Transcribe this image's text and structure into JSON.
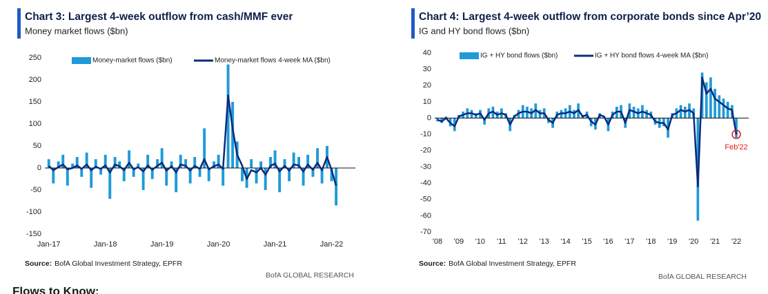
{
  "chart_data": [
    {
      "type": "combo",
      "title": "Chart 3: Largest 4-week outflow from cash/MMF ever",
      "subtitle": "Money market flows ($bn)",
      "source_label": "Source:",
      "source": "BofA Global Investment Strategy, EPFR",
      "brand": "BofA GLOBAL RESEARCH",
      "xlim": [
        2016.93,
        2022.42
      ],
      "xticks": [
        {
          "value": 2017,
          "label": "Jan-17"
        },
        {
          "value": 2018,
          "label": "Jan-18"
        },
        {
          "value": 2019,
          "label": "Jan-19"
        },
        {
          "value": 2020,
          "label": "Jan-20"
        },
        {
          "value": 2021,
          "label": "Jan-21"
        },
        {
          "value": 2022,
          "label": "Jan-22"
        }
      ],
      "ylim": [
        -150,
        250
      ],
      "yticks": [
        -150,
        -100,
        -50,
        0,
        50,
        100,
        150,
        200,
        250
      ],
      "x": [
        2017,
        2017.08,
        2017.17,
        2017.25,
        2017.33,
        2017.42,
        2017.5,
        2017.58,
        2017.67,
        2017.75,
        2017.83,
        2017.92,
        2018,
        2018.08,
        2018.17,
        2018.25,
        2018.33,
        2018.42,
        2018.5,
        2018.58,
        2018.67,
        2018.75,
        2018.83,
        2018.92,
        2019,
        2019.08,
        2019.17,
        2019.25,
        2019.33,
        2019.42,
        2019.5,
        2019.58,
        2019.67,
        2019.75,
        2019.83,
        2019.92,
        2020,
        2020.08,
        2020.17,
        2020.25,
        2020.33,
        2020.42,
        2020.5,
        2020.58,
        2020.67,
        2020.75,
        2020.83,
        2020.92,
        2021,
        2021.08,
        2021.17,
        2021.25,
        2021.33,
        2021.42,
        2021.5,
        2021.58,
        2021.67,
        2021.75,
        2021.83,
        2021.92,
        2022,
        2022.08
      ],
      "series": [
        {
          "name": "Money-market flows ($bn)",
          "kind": "bar",
          "color": "#1f9bd7",
          "values": [
            20,
            -35,
            15,
            30,
            -40,
            10,
            25,
            -20,
            35,
            -45,
            20,
            -15,
            30,
            -70,
            25,
            15,
            -30,
            40,
            -20,
            10,
            -50,
            30,
            -25,
            20,
            45,
            -40,
            15,
            -55,
            30,
            20,
            -35,
            25,
            -20,
            90,
            -30,
            15,
            30,
            -40,
            235,
            150,
            60,
            -30,
            -45,
            20,
            -35,
            15,
            -50,
            25,
            40,
            -55,
            20,
            -30,
            35,
            25,
            -40,
            30,
            -20,
            45,
            -35,
            50,
            -30,
            -85
          ]
        },
        {
          "name": "Money-market flows 4-week MA ($bn)",
          "kind": "line",
          "color": "#0a2a7a",
          "values": [
            5,
            -5,
            2,
            8,
            -3,
            0,
            6,
            -2,
            8,
            -5,
            3,
            -2,
            6,
            -10,
            8,
            4,
            -5,
            12,
            -3,
            2,
            -8,
            6,
            -4,
            5,
            12,
            -6,
            4,
            -10,
            8,
            5,
            -6,
            5,
            -2,
            20,
            -3,
            4,
            8,
            -2,
            165,
            90,
            30,
            5,
            -25,
            -5,
            -10,
            0,
            -15,
            5,
            10,
            -8,
            5,
            -6,
            8,
            6,
            -8,
            8,
            -4,
            12,
            -5,
            25,
            -5,
            -40
          ]
        }
      ]
    },
    {
      "type": "combo",
      "title": "Chart 4: Largest 4-week outflow from corporate bonds since Apr’20",
      "subtitle": "IG and HY bond flows ($bn)",
      "source_label": "Source:",
      "source": "BofA Global Investment Strategy, EPFR",
      "brand": "BofA GLOBAL RESEARCH",
      "annotation": "Feb'22",
      "xlim": [
        2007.87,
        2022.58
      ],
      "xticks": [
        {
          "value": 2008,
          "label": "'08"
        },
        {
          "value": 2009,
          "label": "'09"
        },
        {
          "value": 2010,
          "label": "'10"
        },
        {
          "value": 2011,
          "label": "'11"
        },
        {
          "value": 2012,
          "label": "'12"
        },
        {
          "value": 2013,
          "label": "'13"
        },
        {
          "value": 2014,
          "label": "'14"
        },
        {
          "value": 2015,
          "label": "'15"
        },
        {
          "value": 2016,
          "label": "'16"
        },
        {
          "value": 2017,
          "label": "'17"
        },
        {
          "value": 2018,
          "label": "'18"
        },
        {
          "value": 2019,
          "label": "'19"
        },
        {
          "value": 2020,
          "label": "'20"
        },
        {
          "value": 2021,
          "label": "'21"
        },
        {
          "value": 2022,
          "label": "'22"
        }
      ],
      "ylim": [
        -70,
        40
      ],
      "yticks": [
        -70,
        -60,
        -50,
        -40,
        -30,
        -20,
        -10,
        0,
        10,
        20,
        30,
        40
      ],
      "x": [
        2008,
        2008.2,
        2008.4,
        2008.6,
        2008.8,
        2009,
        2009.2,
        2009.4,
        2009.6,
        2009.8,
        2010,
        2010.2,
        2010.4,
        2010.6,
        2010.8,
        2011,
        2011.2,
        2011.4,
        2011.6,
        2011.8,
        2012,
        2012.2,
        2012.4,
        2012.6,
        2012.8,
        2013,
        2013.2,
        2013.4,
        2013.6,
        2013.8,
        2014,
        2014.2,
        2014.4,
        2014.6,
        2014.8,
        2015,
        2015.2,
        2015.4,
        2015.6,
        2015.8,
        2016,
        2016.2,
        2016.4,
        2016.6,
        2016.8,
        2017,
        2017.2,
        2017.4,
        2017.6,
        2017.8,
        2018,
        2018.2,
        2018.4,
        2018.6,
        2018.8,
        2019,
        2019.2,
        2019.4,
        2019.6,
        2019.8,
        2020,
        2020.2,
        2020.4,
        2020.6,
        2020.8,
        2021,
        2021.2,
        2021.4,
        2021.6,
        2021.8,
        2022
      ],
      "series": [
        {
          "name": "IG + HY bond flows ($bn)",
          "kind": "bar",
          "color": "#1f9bd7",
          "values": [
            -2,
            -3,
            1,
            -5,
            -8,
            2,
            4,
            6,
            5,
            3,
            5,
            -4,
            6,
            7,
            4,
            6,
            3,
            -8,
            2,
            5,
            8,
            7,
            6,
            9,
            5,
            6,
            -3,
            -6,
            4,
            5,
            6,
            8,
            5,
            9,
            2,
            4,
            -5,
            -7,
            3,
            1,
            -8,
            4,
            7,
            8,
            -6,
            9,
            7,
            6,
            8,
            5,
            4,
            -4,
            -6,
            -5,
            -12,
            3,
            6,
            8,
            7,
            9,
            6,
            -63,
            28,
            22,
            25,
            18,
            14,
            12,
            10,
            8,
            -12
          ]
        },
        {
          "name": "IG + HY bond flows 4-week MA ($bn)",
          "kind": "line",
          "color": "#0a2a7a",
          "values": [
            -1,
            -2,
            0,
            -3,
            -5,
            1,
            2,
            3,
            3,
            2,
            3,
            -1,
            3,
            4,
            2,
            3,
            2,
            -4,
            1,
            3,
            4,
            4,
            3,
            5,
            3,
            3,
            -1,
            -3,
            2,
            3,
            3,
            4,
            3,
            5,
            1,
            2,
            -2,
            -4,
            2,
            1,
            -4,
            2,
            4,
            4,
            -3,
            5,
            4,
            3,
            4,
            3,
            2,
            -2,
            -3,
            -3,
            -7,
            2,
            3,
            5,
            4,
            5,
            3,
            -42,
            25,
            15,
            18,
            12,
            10,
            8,
            6,
            5,
            -10
          ]
        }
      ]
    }
  ],
  "footer_heading": "Flows to Know:"
}
